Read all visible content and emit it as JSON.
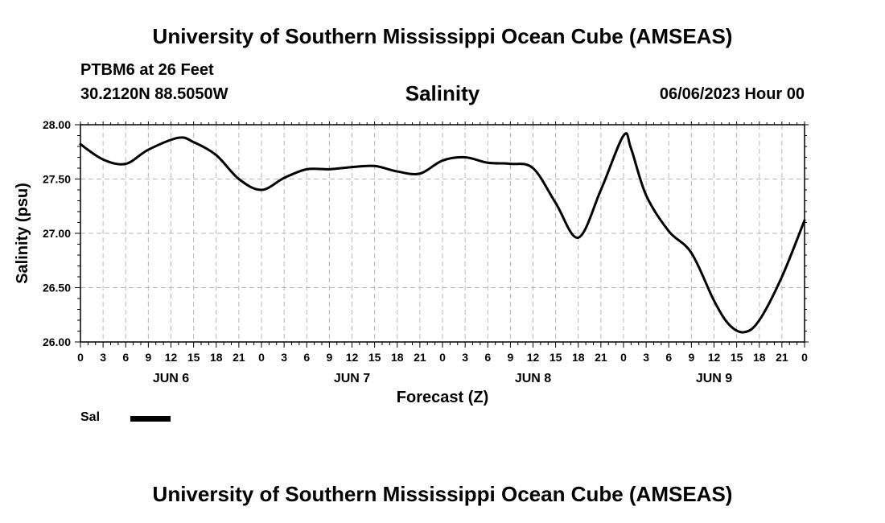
{
  "header": {
    "title": "University of Southern Mississippi Ocean Cube (AMSEAS)",
    "station": "PTBM6 at 26 Feet",
    "coords": "30.2120N  88.5050W",
    "subtitle": "Salinity",
    "datetime": "06/06/2023 Hour 00"
  },
  "footer": {
    "title": "University of Southern Mississippi Ocean Cube (AMSEAS)"
  },
  "legend": {
    "label": "Sal"
  },
  "chart_data": {
    "type": "line",
    "title": "Salinity",
    "xlabel": "Forecast (Z)",
    "ylabel": "Salinity (psu)",
    "xlim": [
      0,
      96
    ],
    "ylim": [
      26.0,
      28.0
    ],
    "yticks": [
      "26.00",
      "26.50",
      "27.00",
      "27.50",
      "28.00"
    ],
    "xtick_labels": [
      "0",
      "3",
      "6",
      "9",
      "12",
      "15",
      "18",
      "21",
      "0",
      "3",
      "6",
      "9",
      "12",
      "15",
      "18",
      "21",
      "0",
      "3",
      "6",
      "9",
      "12",
      "15",
      "18",
      "21",
      "0",
      "3",
      "6",
      "9",
      "12",
      "15",
      "18",
      "21",
      "0"
    ],
    "day_labels": [
      {
        "label": "JUN 6",
        "hour": 12
      },
      {
        "label": "JUN 7",
        "hour": 36
      },
      {
        "label": "JUN 8",
        "hour": 60
      },
      {
        "label": "JUN 9",
        "hour": 84
      }
    ],
    "grid": true,
    "series": [
      {
        "name": "Sal",
        "x": [
          0,
          3,
          6,
          9,
          13,
          15,
          18,
          21,
          24,
          27,
          30,
          33,
          36,
          39,
          42,
          45,
          48,
          51,
          54,
          57,
          60,
          63,
          66,
          69,
          72,
          73,
          75,
          78,
          81,
          84,
          86,
          88,
          90,
          93,
          96
        ],
        "values": [
          27.82,
          27.68,
          27.64,
          27.77,
          27.88,
          27.84,
          27.72,
          27.5,
          27.4,
          27.51,
          27.59,
          27.59,
          27.61,
          27.62,
          27.57,
          27.55,
          27.67,
          27.7,
          27.65,
          27.64,
          27.6,
          27.28,
          26.96,
          27.4,
          27.9,
          27.78,
          27.35,
          27.02,
          26.82,
          26.38,
          26.16,
          26.09,
          26.2,
          26.6,
          27.12
        ]
      }
    ]
  }
}
